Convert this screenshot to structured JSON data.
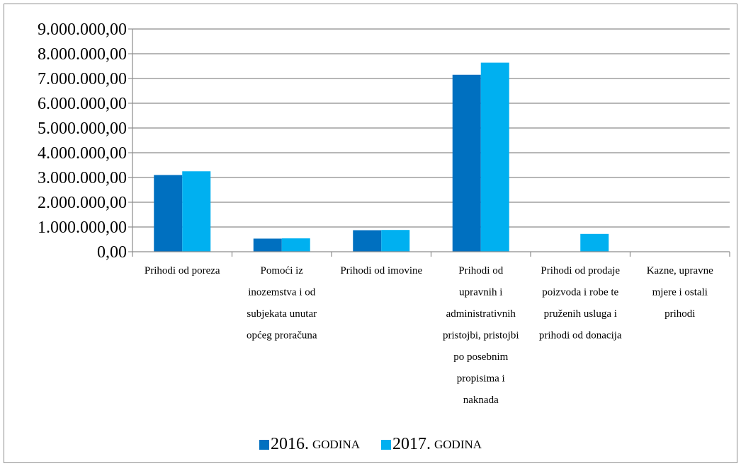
{
  "chart_data": {
    "type": "bar",
    "categories": [
      [
        "Prihodi od poreza"
      ],
      [
        "Pomoći iz",
        "inozemstva i od",
        "subjekata unutar",
        "općeg proračuna"
      ],
      [
        "Prihodi od imovine"
      ],
      [
        "Prihodi od",
        "upravnih i",
        "administrativnih",
        "pristojbi, pristojbi",
        "po posebnim",
        "propisima i",
        "naknada"
      ],
      [
        "Prihodi od prodaje",
        "poizvoda i robe te",
        "pruženih usluga i",
        "prihodi od donacija"
      ],
      [
        "Kazne, upravne",
        "mjere i ostali",
        "prihodi"
      ]
    ],
    "series": [
      {
        "name": "2016. GODINA",
        "name_year": "2016.",
        "name_word": "GODINA",
        "color": "#0070c0",
        "values": [
          3100000,
          530000,
          870000,
          7150000,
          0,
          0
        ]
      },
      {
        "name": "2017. GODINA",
        "name_year": "2017.",
        "name_word": "GODINA",
        "color": "#00b0f0",
        "values": [
          3250000,
          540000,
          880000,
          7640000,
          720000,
          0
        ]
      }
    ],
    "ylim": [
      0,
      9000000
    ],
    "yticks": [
      {
        "value": 0,
        "label": "0,00"
      },
      {
        "value": 1000000,
        "label": "1.000.000,00"
      },
      {
        "value": 2000000,
        "label": "2.000.000,00"
      },
      {
        "value": 3000000,
        "label": "3.000.000,00"
      },
      {
        "value": 4000000,
        "label": "4.000.000,00"
      },
      {
        "value": 5000000,
        "label": "5.000.000,00"
      },
      {
        "value": 6000000,
        "label": "6.000.000,00"
      },
      {
        "value": 7000000,
        "label": "7.000.000,00"
      },
      {
        "value": 8000000,
        "label": "8.000.000,00"
      },
      {
        "value": 9000000,
        "label": "9.000.000,00"
      }
    ],
    "grid": true,
    "legend_position": "bottom",
    "gridline_color": "#8c8c8c"
  }
}
